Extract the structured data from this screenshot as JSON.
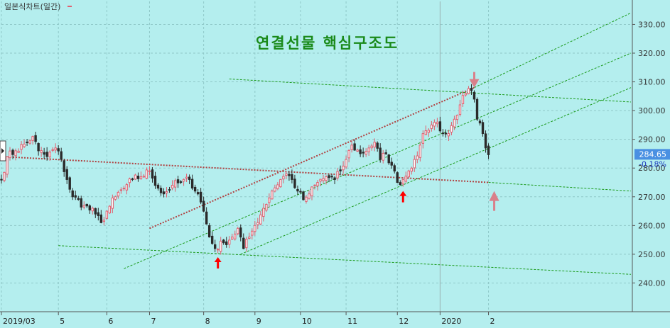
{
  "chart_data": {
    "type": "candlestick",
    "legend": "일본식차트(일간)",
    "title": "연결선물 핵심구조도",
    "ylim": [
      230,
      338
    ],
    "y_ticks": [
      240,
      250,
      260,
      270,
      280,
      290,
      300,
      310,
      320,
      330
    ],
    "y_tick_labels": [
      "240.00",
      "250.00",
      "260.00",
      "270.00",
      "280.00",
      "290.00",
      "300.00",
      "310.00",
      "320.00",
      "330.00"
    ],
    "x_range": [
      0,
      221
    ],
    "x_ticks": [
      {
        "label": "2019/03",
        "x": 0
      },
      {
        "label": "5",
        "x": 20
      },
      {
        "label": "6",
        "x": 37
      },
      {
        "label": "7",
        "x": 52
      },
      {
        "label": "8",
        "x": 71
      },
      {
        "label": "9",
        "x": 89
      },
      {
        "label": "10",
        "x": 105
      },
      {
        "label": "11",
        "x": 121
      },
      {
        "label": "12",
        "x": 139
      },
      {
        "label": "2020",
        "x": 154
      },
      {
        "label": "2",
        "x": 171
      }
    ],
    "last_price": "284.65",
    "last_change": "-0.18%",
    "up_color": "#e06070",
    "down_color": "#2a2a2a",
    "trend_color": "#1a9a1a",
    "main_trend_color": "#b04040",
    "arrow_color": "#ff0000",
    "big_arrow_color": "#d9808a",
    "key_points": [
      {
        "x": 0,
        "close": 276
      },
      {
        "x": 2,
        "close": 284
      },
      {
        "x": 5,
        "close": 286
      },
      {
        "x": 9,
        "close": 289
      },
      {
        "x": 11,
        "close": 291
      },
      {
        "x": 13,
        "close": 286
      },
      {
        "x": 16,
        "close": 284
      },
      {
        "x": 19,
        "close": 287
      },
      {
        "x": 21,
        "close": 283
      },
      {
        "x": 23,
        "close": 276
      },
      {
        "x": 25,
        "close": 270
      },
      {
        "x": 29,
        "close": 267
      },
      {
        "x": 33,
        "close": 264
      },
      {
        "x": 35,
        "close": 261
      },
      {
        "x": 37,
        "close": 265
      },
      {
        "x": 40,
        "close": 270
      },
      {
        "x": 43,
        "close": 273
      },
      {
        "x": 46,
        "close": 276
      },
      {
        "x": 49,
        "close": 277
      },
      {
        "x": 52,
        "close": 279
      },
      {
        "x": 55,
        "close": 273
      },
      {
        "x": 57,
        "close": 271
      },
      {
        "x": 60,
        "close": 274
      },
      {
        "x": 63,
        "close": 275
      },
      {
        "x": 66,
        "close": 276
      },
      {
        "x": 69,
        "close": 271
      },
      {
        "x": 71,
        "close": 265
      },
      {
        "x": 73,
        "close": 256
      },
      {
        "x": 75,
        "close": 252
      },
      {
        "x": 78,
        "close": 254
      },
      {
        "x": 81,
        "close": 256
      },
      {
        "x": 83,
        "close": 259
      },
      {
        "x": 85,
        "close": 252
      },
      {
        "x": 87,
        "close": 256
      },
      {
        "x": 89,
        "close": 260
      },
      {
        "x": 92,
        "close": 266
      },
      {
        "x": 95,
        "close": 272
      },
      {
        "x": 98,
        "close": 276
      },
      {
        "x": 100,
        "close": 278
      },
      {
        "x": 102,
        "close": 276
      },
      {
        "x": 104,
        "close": 272
      },
      {
        "x": 106,
        "close": 269
      },
      {
        "x": 108,
        "close": 271
      },
      {
        "x": 111,
        "close": 275
      },
      {
        "x": 114,
        "close": 277
      },
      {
        "x": 117,
        "close": 276
      },
      {
        "x": 119,
        "close": 279
      },
      {
        "x": 121,
        "close": 283
      },
      {
        "x": 123,
        "close": 288
      },
      {
        "x": 126,
        "close": 285
      },
      {
        "x": 129,
        "close": 287
      },
      {
        "x": 131,
        "close": 289
      },
      {
        "x": 133,
        "close": 283
      },
      {
        "x": 135,
        "close": 285
      },
      {
        "x": 137,
        "close": 281
      },
      {
        "x": 139,
        "close": 275
      },
      {
        "x": 141,
        "close": 276
      },
      {
        "x": 143,
        "close": 279
      },
      {
        "x": 145,
        "close": 283
      },
      {
        "x": 147,
        "close": 288
      },
      {
        "x": 149,
        "close": 293
      },
      {
        "x": 151,
        "close": 295
      },
      {
        "x": 153,
        "close": 296
      },
      {
        "x": 155,
        "close": 292
      },
      {
        "x": 157,
        "close": 292
      },
      {
        "x": 159,
        "close": 297
      },
      {
        "x": 161,
        "close": 302
      },
      {
        "x": 163,
        "close": 306
      },
      {
        "x": 165,
        "close": 307
      },
      {
        "x": 166,
        "close": 304
      },
      {
        "x": 167,
        "close": 297
      },
      {
        "x": 169,
        "close": 292
      },
      {
        "x": 170,
        "close": 287
      },
      {
        "x": 171,
        "close": 284.65
      }
    ],
    "trend_lines": [
      {
        "x1": 0,
        "y1": 284,
        "x2": 171,
        "y2": 275,
        "style": "main",
        "dotted": true
      },
      {
        "x1": 171,
        "y1": 275,
        "x2": 221,
        "y2": 272,
        "style": "trend"
      },
      {
        "x1": 52,
        "y1": 259,
        "x2": 166,
        "y2": 308,
        "style": "main",
        "dotted": true
      },
      {
        "x1": 166,
        "y1": 308,
        "x2": 221,
        "y2": 334,
        "style": "trend"
      },
      {
        "x1": 43,
        "y1": 245,
        "x2": 221,
        "y2": 320,
        "style": "trend"
      },
      {
        "x1": 84,
        "y1": 250,
        "x2": 221,
        "y2": 308,
        "style": "trend"
      },
      {
        "x1": 80,
        "y1": 311,
        "x2": 221,
        "y2": 303,
        "style": "trend"
      },
      {
        "x1": 20,
        "y1": 253,
        "x2": 221,
        "y2": 243,
        "style": "trend"
      }
    ],
    "arrows": [
      {
        "x": 76,
        "price": 249,
        "dir": "up",
        "kind": "small"
      },
      {
        "x": 141,
        "price": 272,
        "dir": "up",
        "kind": "small"
      },
      {
        "x": 166,
        "price": 308,
        "dir": "down",
        "kind": "big"
      },
      {
        "x": 173,
        "price": 272,
        "dir": "up",
        "kind": "big"
      }
    ]
  }
}
